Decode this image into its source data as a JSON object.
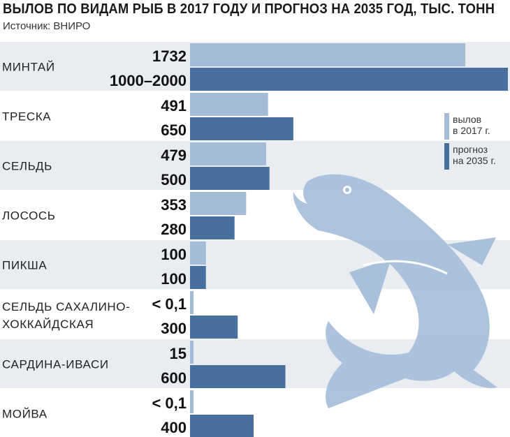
{
  "header": {
    "title": "ВЫЛОВ ПО ВИДАМ РЫБ В 2017 ГОДУ И ПРОГНОЗ НА 2035 ГОД, ТЫС. ТОНН",
    "source": "Источник: ВНИРО"
  },
  "colors": {
    "series_2017": "#a5bcd9",
    "series_2035": "#48709e",
    "band": "#e9edf2",
    "fish": "#a9c0da"
  },
  "chart_data": {
    "type": "bar",
    "orientation": "horizontal",
    "title": "ВЫЛОВ ПО ВИДАМ РЫБ В 2017 ГОДУ И ПРОГНОЗ НА 2035 ГОД, ТЫС. ТОНН",
    "categories": [
      "МИНТАЙ",
      "ТРЕСКА",
      "СЕЛЬДЬ",
      "ЛОСОСЬ",
      "ПИКША",
      "СЕЛЬДЬ САХАЛИНО-\nХОККАЙДСКАЯ",
      "САРДИНА-ИВАСИ",
      "МОЙВА"
    ],
    "series": [
      {
        "name": "вылов\nв 2017 г.",
        "values": [
          1732,
          491,
          479,
          353,
          100,
          0.1,
          15,
          0.1
        ],
        "labels": [
          "1732",
          "491",
          "479",
          "353",
          "100",
          "< 0,1",
          "15",
          "< 0,1"
        ]
      },
      {
        "name": "прогноз\nна 2035 г.",
        "values": [
          2000,
          650,
          500,
          280,
          100,
          300,
          600,
          400
        ],
        "labels": [
          "1000–2000",
          "650",
          "500",
          "280",
          "100",
          "300",
          "600",
          "400"
        ]
      }
    ],
    "legend_position": "right",
    "grid": false
  }
}
